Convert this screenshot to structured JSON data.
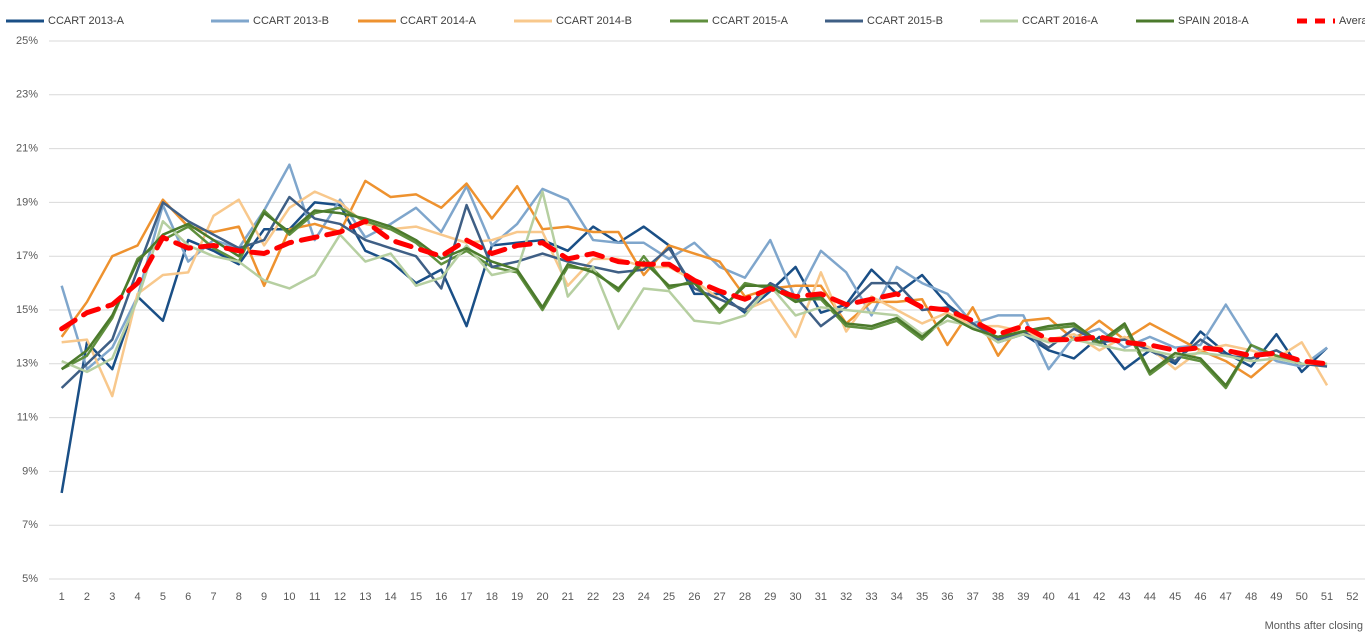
{
  "chart_data": {
    "type": "line",
    "x": [
      1,
      2,
      3,
      4,
      5,
      6,
      7,
      8,
      9,
      10,
      11,
      12,
      13,
      14,
      15,
      16,
      17,
      18,
      19,
      20,
      21,
      22,
      23,
      24,
      25,
      26,
      27,
      28,
      29,
      30,
      31,
      32,
      33,
      34,
      35,
      36,
      37,
      38,
      39,
      40,
      41,
      42,
      43,
      44,
      45,
      46,
      47,
      48,
      49,
      50,
      51
    ],
    "xlim": [
      0.5,
      52.5
    ],
    "xticks": [
      1,
      2,
      3,
      4,
      5,
      6,
      7,
      8,
      9,
      10,
      11,
      12,
      13,
      14,
      15,
      16,
      17,
      18,
      19,
      20,
      21,
      22,
      23,
      24,
      25,
      26,
      27,
      28,
      29,
      30,
      31,
      32,
      33,
      34,
      35,
      36,
      37,
      38,
      39,
      40,
      41,
      42,
      43,
      44,
      45,
      46,
      47,
      48,
      49,
      50,
      51,
      52
    ],
    "x_label": "Months after closing",
    "ylim": [
      5,
      25
    ],
    "yticks": [
      {
        "value": 5,
        "label": "5%"
      },
      {
        "value": 7,
        "label": "7%"
      },
      {
        "value": 9,
        "label": "9%"
      },
      {
        "value": 11,
        "label": "11%"
      },
      {
        "value": 13,
        "label": "13%"
      },
      {
        "value": 15,
        "label": "15%"
      },
      {
        "value": 17,
        "label": "17%"
      },
      {
        "value": 19,
        "label": "19%"
      },
      {
        "value": 21,
        "label": "21%"
      },
      {
        "value": 23,
        "label": "23%"
      },
      {
        "value": 25,
        "label": "25%"
      }
    ],
    "grid": true,
    "legend": "top",
    "series": [
      {
        "name": "CCART 2013-A",
        "color": "#1a4f86",
        "values": [
          8.2,
          13.8,
          12.8,
          15.5,
          14.6,
          17.6,
          17.2,
          16.7,
          18.0,
          18.0,
          19.0,
          18.9,
          17.2,
          16.8,
          16.0,
          16.5,
          14.4,
          17.4,
          17.5,
          17.6,
          17.2,
          18.1,
          17.5,
          18.1,
          17.4,
          15.6,
          15.6,
          14.9,
          15.7,
          16.6,
          14.9,
          15.2,
          16.5,
          15.6,
          16.3,
          15.2,
          14.5,
          13.8,
          14.1,
          13.5,
          13.2,
          14.0,
          12.8,
          13.5,
          13.0,
          14.2,
          13.4,
          12.9,
          14.1,
          12.7,
          13.6
        ]
      },
      {
        "name": "CCART 2013-B",
        "color": "#7fa6cc",
        "values": [
          15.9,
          12.8,
          13.6,
          15.5,
          18.9,
          16.8,
          17.6,
          17.3,
          18.7,
          20.4,
          17.6,
          19.1,
          17.7,
          18.2,
          18.8,
          17.9,
          19.6,
          17.4,
          18.2,
          19.5,
          19.1,
          17.6,
          17.5,
          17.5,
          16.9,
          17.5,
          16.6,
          16.2,
          17.6,
          15.4,
          17.2,
          16.4,
          14.8,
          16.6,
          16.0,
          15.6,
          14.5,
          14.8,
          14.8,
          12.8,
          14.0,
          14.3,
          13.6,
          14.0,
          13.6,
          13.7,
          15.2,
          13.7,
          13.1,
          12.9,
          13.6
        ]
      },
      {
        "name": "CCART 2014-A",
        "color": "#ee922f",
        "values": [
          14.0,
          15.3,
          17.0,
          17.4,
          19.1,
          18.1,
          17.9,
          18.1,
          15.9,
          18.0,
          18.2,
          17.9,
          19.8,
          19.2,
          19.3,
          18.8,
          19.7,
          18.4,
          19.6,
          18.0,
          18.1,
          17.9,
          17.9,
          16.3,
          17.4,
          17.1,
          16.8,
          15.5,
          15.8,
          15.9,
          15.9,
          14.5,
          15.3,
          15.3,
          15.4,
          13.7,
          15.1,
          13.3,
          14.6,
          14.7,
          13.9,
          14.6,
          13.9,
          14.5,
          14.0,
          13.5,
          13.1,
          12.5,
          13.3,
          13.0,
          13.0
        ]
      },
      {
        "name": "CCART 2014-B",
        "color": "#f8c88c",
        "values": [
          13.8,
          13.9,
          11.8,
          15.6,
          16.3,
          16.4,
          18.5,
          19.1,
          17.4,
          18.8,
          19.4,
          19.0,
          18.2,
          18.0,
          18.1,
          17.8,
          17.5,
          17.6,
          17.9,
          17.9,
          15.9,
          16.9,
          16.9,
          16.6,
          16.6,
          16.1,
          15.4,
          15.0,
          15.4,
          14.0,
          16.4,
          14.2,
          15.5,
          15.0,
          14.5,
          14.9,
          14.4,
          14.4,
          14.2,
          13.9,
          14.1,
          13.5,
          14.0,
          13.6,
          12.8,
          13.5,
          13.7,
          13.5,
          13.2,
          13.8,
          12.2
        ]
      },
      {
        "name": "CCART 2015-A",
        "color": "#5f8f3e",
        "values": [
          12.8,
          13.3,
          14.7,
          16.9,
          17.6,
          18.1,
          17.3,
          16.8,
          18.7,
          17.8,
          18.6,
          18.8,
          18.3,
          18.0,
          17.5,
          16.7,
          17.2,
          16.6,
          16.4,
          15.0,
          16.6,
          16.5,
          15.7,
          17.0,
          15.8,
          16.1,
          14.9,
          16.0,
          15.8,
          15.4,
          15.4,
          14.4,
          14.3,
          14.6,
          13.9,
          14.8,
          14.3,
          14.0,
          14.2,
          14.3,
          14.4,
          13.7,
          14.4,
          12.6,
          13.3,
          13.1,
          12.1,
          13.7,
          13.3,
          13.0,
          13.0
        ]
      },
      {
        "name": "CCART 2015-B",
        "color": "#3f5f85",
        "values": [
          12.1,
          13.0,
          13.9,
          16.5,
          19.0,
          18.3,
          17.8,
          17.3,
          17.6,
          19.2,
          18.4,
          18.2,
          17.6,
          17.3,
          17.0,
          15.8,
          18.9,
          16.6,
          16.8,
          17.1,
          16.8,
          16.6,
          16.4,
          16.5,
          17.3,
          15.8,
          15.4,
          15.0,
          16.0,
          15.5,
          14.4,
          15.1,
          16.0,
          16.0,
          15.0,
          15.1,
          14.5,
          13.9,
          14.2,
          13.6,
          14.3,
          13.8,
          13.9,
          13.5,
          13.1,
          13.9,
          13.3,
          13.2,
          13.5,
          13.0,
          12.9
        ]
      },
      {
        "name": "CCART 2016-A",
        "color": "#b6cfa1",
        "values": [
          13.1,
          12.7,
          13.2,
          15.4,
          18.3,
          17.4,
          17.0,
          16.8,
          16.1,
          15.8,
          16.3,
          17.8,
          16.8,
          17.1,
          15.9,
          16.2,
          17.4,
          16.3,
          16.5,
          19.4,
          15.5,
          16.6,
          14.3,
          15.8,
          15.7,
          14.6,
          14.5,
          14.8,
          15.9,
          14.8,
          15.1,
          15.0,
          14.9,
          14.8,
          14.1,
          14.6,
          14.4,
          13.8,
          14.1,
          13.8,
          13.9,
          13.7,
          13.5,
          13.5,
          13.3,
          13.4,
          13.3,
          13.1,
          13.2,
          13.0,
          13.0
        ]
      },
      {
        "name": "SPAIN 2018-A",
        "color": "#4b7a2c",
        "values": [
          12.8,
          13.5,
          14.8,
          16.8,
          17.8,
          18.2,
          17.6,
          17.0,
          18.6,
          17.9,
          18.7,
          18.6,
          18.4,
          18.1,
          17.6,
          16.9,
          17.3,
          16.8,
          16.5,
          15.1,
          16.7,
          16.4,
          15.8,
          16.8,
          15.9,
          16.0,
          15.0,
          15.9,
          15.9,
          15.3,
          15.5,
          14.5,
          14.4,
          14.7,
          14.0,
          14.8,
          14.3,
          14.0,
          14.2,
          14.4,
          14.5,
          13.8,
          14.5,
          12.7,
          13.4,
          13.2,
          12.2,
          13.7,
          null,
          null,
          null
        ]
      },
      {
        "name": "Average",
        "color": "#ff0000",
        "dashed": true,
        "values": [
          14.3,
          14.9,
          15.2,
          16.0,
          17.7,
          17.3,
          17.4,
          17.2,
          17.1,
          17.5,
          17.7,
          17.9,
          18.3,
          17.6,
          17.3,
          17.0,
          17.6,
          17.1,
          17.4,
          17.5,
          16.9,
          17.1,
          16.8,
          16.7,
          16.7,
          16.1,
          15.7,
          15.4,
          15.8,
          15.5,
          15.6,
          15.2,
          15.4,
          15.6,
          15.1,
          15.0,
          14.6,
          14.1,
          14.4,
          13.9,
          13.9,
          14.0,
          13.8,
          13.7,
          13.5,
          13.6,
          13.5,
          13.3,
          13.4,
          13.1,
          13.0
        ]
      }
    ]
  }
}
